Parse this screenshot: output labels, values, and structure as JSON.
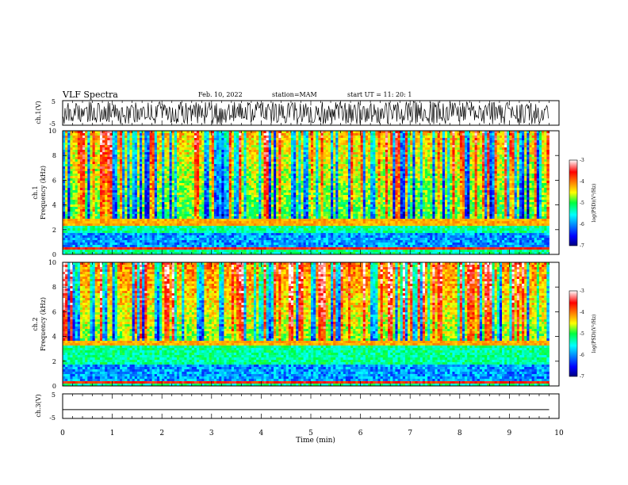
{
  "header": {
    "title": "VLF Spectra",
    "date": "Feb. 10, 2022",
    "station": "station=MAM",
    "start": "start  UT =   11: 20: 1"
  },
  "chart_data": [
    {
      "type": "line",
      "panel": "waveform-ch1",
      "ylabel": "ch.1(V)",
      "yticks": [
        "5",
        "-5"
      ],
      "ylim": [
        -5,
        5
      ],
      "xlim": [
        0,
        10
      ],
      "description_values": {
        "trace": "dense VLF sferic waveform, 0 to 9.8 min"
      }
    },
    {
      "type": "heatmap",
      "panel": "spectrogram-ch1",
      "ylabel_top": "ch.1",
      "ylabel": "Frequency  (kHz)",
      "yticks": [
        "0",
        "2",
        "4",
        "6",
        "8",
        "10"
      ],
      "ylim": [
        0,
        10
      ],
      "xlim": [
        0,
        10
      ],
      "x_data_end": 9.8,
      "colorbar": {
        "label": "log(PSD)(V²/Hz)",
        "ticks": [
          "-3",
          "-4",
          "-5",
          "-6",
          "-7"
        ],
        "range": [
          -7,
          -3
        ],
        "colormap": "jet"
      },
      "features": {
        "low_band_kHz": [
          0.5,
          1.7
        ],
        "band_edge_kHz": 2.6,
        "noise_line_kHz": 0.5,
        "background_level": -5.0,
        "high_freq_level": -4.3
      }
    },
    {
      "type": "heatmap",
      "panel": "spectrogram-ch2",
      "ylabel_top": "ch.2",
      "ylabel": "Frequency  (kHz)",
      "yticks": [
        "0",
        "2",
        "4",
        "6",
        "8",
        "10"
      ],
      "ylim": [
        0,
        10
      ],
      "xlim": [
        0,
        10
      ],
      "x_data_end": 9.8,
      "colorbar": {
        "label": "log(PSD)(V²/Hz)",
        "ticks": [
          "-3",
          "-4",
          "-5",
          "-6",
          "-7"
        ],
        "range": [
          -7,
          -3
        ],
        "colormap": "jet"
      },
      "features": {
        "low_band_kHz": [
          0.3,
          1.8
        ],
        "band_edge_kHz": 3.4,
        "noise_line_kHz": 0.3,
        "background_level": -4.8,
        "high_freq_level": -4.0
      }
    },
    {
      "type": "line",
      "panel": "waveform-ch3",
      "ylabel": "ch.3(V)",
      "yticks": [
        "5",
        "-5"
      ],
      "ylim": [
        -5,
        5
      ],
      "xlim": [
        0,
        10
      ],
      "series": [
        {
          "x": [
            0,
            9.8
          ],
          "y": [
            -1.5,
            -1.5
          ]
        }
      ]
    }
  ],
  "xaxis": {
    "label": "Time  (min)",
    "ticks": [
      "0",
      "1",
      "2",
      "3",
      "4",
      "5",
      "6",
      "7",
      "8",
      "9",
      "10"
    ]
  }
}
